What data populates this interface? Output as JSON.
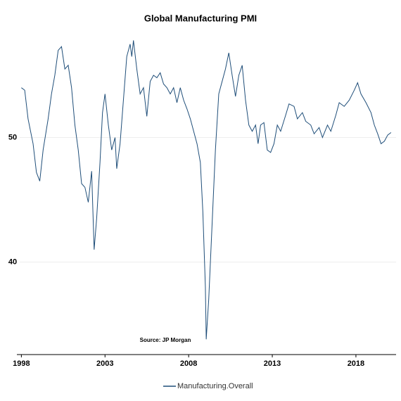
{
  "chart_data": {
    "type": "line",
    "title": "Global Manufacturing PMI",
    "annotation": "Source: JP Morgan",
    "xlim": [
      1997.9,
      2020.4
    ],
    "xticks": [
      1998,
      2003,
      2008,
      2013,
      2018
    ],
    "ylim": [
      32.8,
      58.5
    ],
    "yticks": [
      40,
      50
    ],
    "grid": true,
    "legend": "bottom",
    "x": [
      1998.0,
      1998.2,
      1998.4,
      1998.7,
      1998.9,
      1999.1,
      1999.3,
      1999.6,
      1999.8,
      2000.0,
      2000.2,
      2000.4,
      2000.6,
      2000.8,
      2001.0,
      2001.2,
      2001.4,
      2001.6,
      2001.8,
      2002.0,
      2002.2,
      2002.35,
      2002.5,
      2002.7,
      2002.85,
      2003.0,
      2003.2,
      2003.4,
      2003.6,
      2003.7,
      2003.9,
      2004.1,
      2004.3,
      2004.5,
      2004.6,
      2004.7,
      2004.9,
      2005.1,
      2005.3,
      2005.5,
      2005.7,
      2005.9,
      2006.1,
      2006.3,
      2006.5,
      2006.7,
      2006.9,
      2007.1,
      2007.3,
      2007.5,
      2007.7,
      2007.9,
      2008.1,
      2008.3,
      2008.5,
      2008.7,
      2008.85,
      2009.0,
      2009.05,
      2009.2,
      2009.4,
      2009.6,
      2009.8,
      2010.0,
      2010.2,
      2010.4,
      2010.6,
      2010.8,
      2011.0,
      2011.2,
      2011.4,
      2011.6,
      2011.8,
      2012.0,
      2012.15,
      2012.3,
      2012.5,
      2012.7,
      2012.9,
      2013.1,
      2013.3,
      2013.5,
      2013.8,
      2014.0,
      2014.3,
      2014.5,
      2014.8,
      2015.0,
      2015.3,
      2015.5,
      2015.8,
      2016.0,
      2016.3,
      2016.5,
      2016.8,
      2017.0,
      2017.3,
      2017.6,
      2017.9,
      2018.1,
      2018.3,
      2018.6,
      2018.9,
      2019.1,
      2019.3,
      2019.5,
      2019.7,
      2019.9,
      2020.1
    ],
    "series": [
      {
        "name": "Manufacturing.Overall",
        "color": "#1f4e79",
        "values": [
          54.0,
          53.8,
          51.5,
          49.5,
          47.2,
          46.5,
          49.0,
          51.5,
          53.5,
          55.0,
          57.0,
          57.3,
          55.5,
          55.8,
          54.0,
          51.0,
          49.0,
          46.3,
          46.0,
          44.8,
          47.3,
          41.0,
          43.5,
          48.0,
          52.0,
          53.5,
          51.0,
          49.0,
          50.0,
          47.5,
          49.5,
          53.0,
          56.5,
          57.5,
          56.5,
          57.8,
          55.5,
          53.5,
          54.0,
          51.7,
          54.5,
          55.0,
          54.8,
          55.2,
          54.3,
          54.0,
          53.5,
          54.0,
          52.8,
          54.0,
          53.0,
          52.3,
          51.5,
          50.5,
          49.5,
          48.0,
          44.0,
          38.0,
          33.8,
          37.0,
          43.0,
          49.0,
          53.5,
          54.5,
          55.5,
          56.8,
          55.0,
          53.3,
          55.0,
          55.8,
          53.0,
          51.0,
          50.5,
          51.0,
          49.5,
          51.0,
          51.2,
          49.0,
          48.8,
          49.5,
          51.0,
          50.5,
          51.8,
          52.7,
          52.5,
          51.5,
          52.0,
          51.3,
          51.0,
          50.3,
          50.8,
          50.0,
          51.0,
          50.5,
          51.8,
          52.8,
          52.5,
          53.0,
          53.8,
          54.4,
          53.5,
          52.8,
          52.0,
          51.0,
          50.3,
          49.5,
          49.7,
          50.2,
          50.4
        ]
      }
    ]
  }
}
